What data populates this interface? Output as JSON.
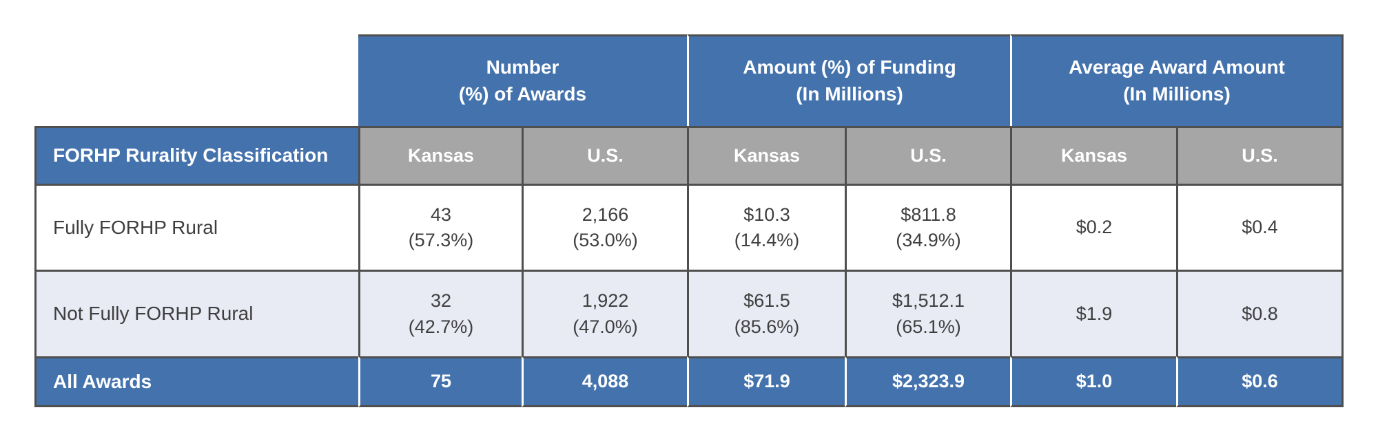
{
  "table": {
    "column_groups": [
      {
        "label": "Number\n(%) of Awards"
      },
      {
        "label": "Amount (%) of Funding\n(In Millions)"
      },
      {
        "label": "Average Award Amount\n(In Millions)"
      }
    ],
    "row_header_title": "FORHP Rurality Classification",
    "sub_headers": [
      "Kansas",
      "U.S.",
      "Kansas",
      "U.S.",
      "Kansas",
      "U.S."
    ],
    "rows": [
      {
        "label": "Fully FORHP Rural",
        "values": [
          "43\n(57.3%)",
          "2,166\n(53.0%)",
          "$10.3\n(14.4%)",
          "$811.8\n(34.9%)",
          "$0.2",
          "$0.4"
        ]
      },
      {
        "label": "Not Fully FORHP Rural",
        "values": [
          "32\n(42.7%)",
          "1,922\n(47.0%)",
          "$61.5\n(85.6%)",
          "$1,512.1\n(65.1%)",
          "$1.9",
          "$0.8"
        ]
      }
    ],
    "total_row": {
      "label": "All Awards",
      "values": [
        "75",
        "4,088",
        "$71.9",
        "$2,323.9",
        "$1.0",
        "$0.6"
      ]
    }
  },
  "colors": {
    "header_blue": "#4472ad",
    "subheader_gray": "#a6a6a6",
    "alt_row_lavender": "#e8eaf4",
    "border_dark": "#4f4f4f",
    "text_dark": "#3f3f3f",
    "text_light": "#ffffff"
  },
  "chart_data": {
    "type": "table",
    "title": "FORHP Rurality Classification — Awards and Funding, Kansas vs U.S.",
    "column_groups": [
      "Number (%) of Awards",
      "Amount (%) of Funding (In Millions)",
      "Average Award Amount (In Millions)"
    ],
    "columns": [
      "FORHP Rurality Classification",
      "Number of Awards - Kansas",
      "Number of Awards - U.S.",
      "Funding (Millions) - Kansas",
      "Funding (Millions) - U.S.",
      "Average Award (Millions) - Kansas",
      "Average Award (Millions) - U.S."
    ],
    "rows": [
      [
        "Fully FORHP Rural",
        "43 (57.3%)",
        "2,166 (53.0%)",
        "$10.3 (14.4%)",
        "$811.8 (34.9%)",
        "$0.2",
        "$0.4"
      ],
      [
        "Not Fully FORHP Rural",
        "32 (42.7%)",
        "1,922 (47.0%)",
        "$61.5 (85.6%)",
        "$1,512.1 (65.1%)",
        "$1.9",
        "$0.8"
      ],
      [
        "All Awards",
        "75",
        "4,088",
        "$71.9",
        "$2,323.9",
        "$1.0",
        "$0.6"
      ]
    ]
  }
}
